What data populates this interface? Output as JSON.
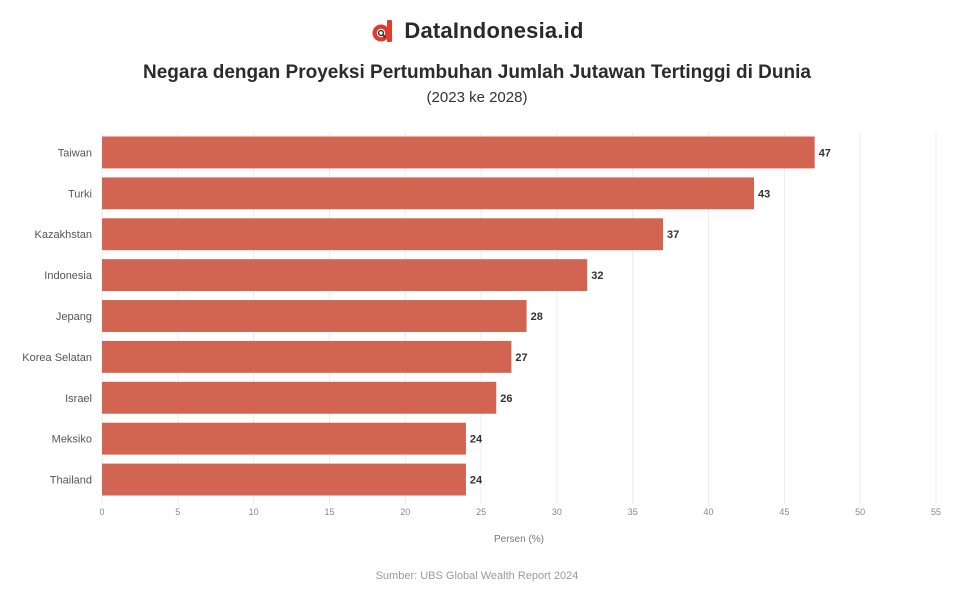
{
  "brand": {
    "name": "DataIndonesia.id",
    "logo_icon": "dataindonesia-logo-icon"
  },
  "source": "Sumber: UBS Global Wealth Report 2024",
  "chart_data": {
    "type": "bar",
    "orientation": "horizontal",
    "title": "Negara dengan Proyeksi Pertumbuhan Jumlah Jutawan Tertinggi di Dunia",
    "subtitle": "(2023 ke 2028)",
    "categories": [
      "Taiwan",
      "Turki",
      "Kazakhstan",
      "Indonesia",
      "Jepang",
      "Korea Selatan",
      "Israel",
      "Meksiko",
      "Thailand"
    ],
    "values": [
      47,
      43,
      37,
      32,
      28,
      27,
      26,
      24,
      24
    ],
    "xlabel": "Persen (%)",
    "ylabel": "",
    "xlim": [
      0,
      55
    ],
    "xticks": [
      0,
      5,
      10,
      15,
      20,
      25,
      30,
      35,
      40,
      45,
      50,
      55
    ],
    "bar_color": "#d26452",
    "grid": true
  }
}
